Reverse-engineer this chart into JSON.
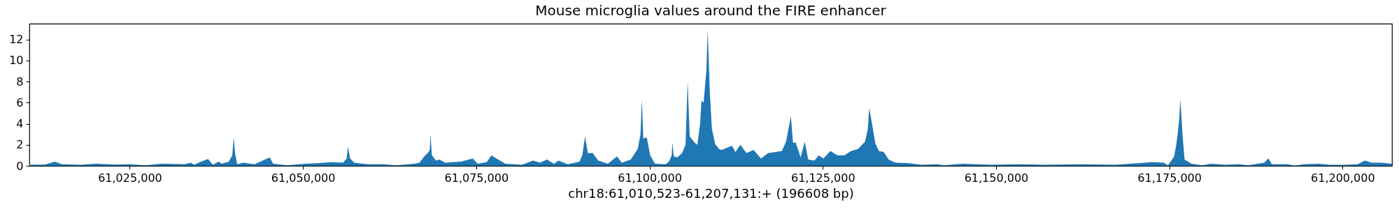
{
  "chart_data": {
    "type": "area",
    "title": "Mouse microglia values around the FIRE enhancer",
    "xlabel": "chr18:61,010,523-61,207,131:+ (196608 bp)",
    "xlim": [
      61010523,
      61207131
    ],
    "ylim": [
      0,
      13.5
    ],
    "xticks": [
      {
        "value": 61025000,
        "label": "61,025,000"
      },
      {
        "value": 61050000,
        "label": "61,050,000"
      },
      {
        "value": 61075000,
        "label": "61,075,000"
      },
      {
        "value": 61100000,
        "label": "61,100,000"
      },
      {
        "value": 61125000,
        "label": "61,125,000"
      },
      {
        "value": 61150000,
        "label": "61,150,000"
      },
      {
        "value": 61175000,
        "label": "61,175,000"
      },
      {
        "value": 61200000,
        "label": "61,200,000"
      }
    ],
    "yticks": [
      0,
      2,
      4,
      6,
      8,
      10,
      12
    ],
    "grid": false,
    "x": [
      61010523,
      61012800,
      61014200,
      61015200,
      61017900,
      61020200,
      61022900,
      61024900,
      61027300,
      61029600,
      61032900,
      61033800,
      61034300,
      61035300,
      61036300,
      61037000,
      61037800,
      61038300,
      61039300,
      61039800,
      61040000,
      61040200,
      61040500,
      61041400,
      61043000,
      61045200,
      61045700,
      61047700,
      61050400,
      61052100,
      61054100,
      61055800,
      61056300,
      61056500,
      61056800,
      61057400,
      61059400,
      61061500,
      61063500,
      61066100,
      61066800,
      61067500,
      61068000,
      61068300,
      61068400,
      61068600,
      61069200,
      61069700,
      61070500,
      61072800,
      61074500,
      61075200,
      61076500,
      61077200,
      61077900,
      61079200,
      61081600,
      61083200,
      61084200,
      61085200,
      61086200,
      61086900,
      61088200,
      61089900,
      61090300,
      61090700,
      61091100,
      61091800,
      61092600,
      61094000,
      61095300,
      61096000,
      61097300,
      61098300,
      61098700,
      61098900,
      61099100,
      61099600,
      61100100,
      61100800,
      61102300,
      61102800,
      61103200,
      61103300,
      61103500,
      61104000,
      61104700,
      61105200,
      61105500,
      61105800,
      61106500,
      61106900,
      61107300,
      61107500,
      61107800,
      61108200,
      61108400,
      61108700,
      61109000,
      61109500,
      61109700,
      61110000,
      61110400,
      61111900,
      61112400,
      61113100,
      61114000,
      61115000,
      61116100,
      61117100,
      61118100,
      61119100,
      61119700,
      61120400,
      61120700,
      61121100,
      61121800,
      61122400,
      61122900,
      61123800,
      61124400,
      61125100,
      61126100,
      61127100,
      61128100,
      61129100,
      61130100,
      61131100,
      61131500,
      61131700,
      61132100,
      61132600,
      61133100,
      61133800,
      61134500,
      61135500,
      61137500,
      61139200,
      61141500,
      61142500,
      61145200,
      61149200,
      61153200,
      61157300,
      61162300,
      61167300,
      61172500,
      61174200,
      61174800,
      61175300,
      61175700,
      61176000,
      61176200,
      61176400,
      61176600,
      61176900,
      61177200,
      61178200,
      61179700,
      61181000,
      61183100,
      61185100,
      61186400,
      61188700,
      61189300,
      61189800,
      61192100,
      61193100,
      61194400,
      61196500,
      61198100,
      61200500,
      61202200,
      61203200,
      61204200,
      61205500,
      61207131
    ],
    "series": [
      {
        "color": "#1f77b4",
        "values": [
          0.1,
          0.12,
          0.4,
          0.15,
          0.1,
          0.2,
          0.12,
          0.15,
          0.05,
          0.2,
          0.15,
          0.3,
          0.1,
          0.4,
          0.65,
          0.1,
          0.4,
          0.2,
          0.4,
          1.0,
          2.7,
          1.2,
          0.15,
          0.3,
          0.15,
          0.8,
          0.2,
          0.05,
          0.2,
          0.25,
          0.35,
          0.3,
          0.7,
          1.8,
          0.7,
          0.3,
          0.15,
          0.15,
          0.05,
          0.2,
          0.3,
          0.9,
          1.2,
          1.5,
          3.0,
          1.0,
          0.5,
          0.6,
          0.3,
          0.4,
          0.7,
          0.2,
          0.35,
          1.0,
          0.7,
          0.2,
          0.1,
          0.5,
          0.3,
          0.6,
          0.2,
          0.5,
          0.15,
          0.4,
          1.0,
          2.8,
          1.2,
          1.2,
          0.5,
          0.2,
          0.9,
          0.3,
          0.6,
          1.6,
          3.0,
          6.3,
          2.6,
          2.7,
          1.0,
          0.2,
          0.15,
          0.4,
          1.0,
          2.2,
          0.9,
          0.8,
          1.2,
          2.0,
          8.0,
          2.8,
          2.2,
          2.0,
          4.0,
          6.2,
          6.0,
          9.0,
          12.9,
          7.0,
          3.5,
          2.0,
          1.9,
          1.6,
          1.5,
          1.9,
          1.3,
          2.0,
          1.2,
          1.5,
          0.7,
          1.2,
          1.3,
          1.4,
          2.3,
          4.7,
          2.2,
          2.2,
          0.8,
          2.3,
          0.6,
          0.5,
          1.0,
          0.7,
          1.4,
          1.0,
          1.0,
          1.4,
          1.6,
          2.3,
          3.5,
          5.5,
          4.0,
          2.1,
          1.4,
          1.3,
          0.6,
          0.3,
          0.25,
          0.1,
          0.15,
          0.05,
          0.2,
          0.1,
          0.15,
          0.1,
          0.15,
          0.1,
          0.35,
          0.3,
          0.05,
          0.5,
          0.9,
          2.0,
          3.0,
          4.2,
          6.3,
          3.0,
          0.6,
          0.2,
          0.05,
          0.2,
          0.1,
          0.15,
          0.05,
          0.3,
          0.7,
          0.15,
          0.15,
          0.02,
          0.15,
          0.2,
          0.1,
          0.1,
          0.15,
          0.5,
          0.3,
          0.3,
          0.2
        ]
      }
    ]
  }
}
